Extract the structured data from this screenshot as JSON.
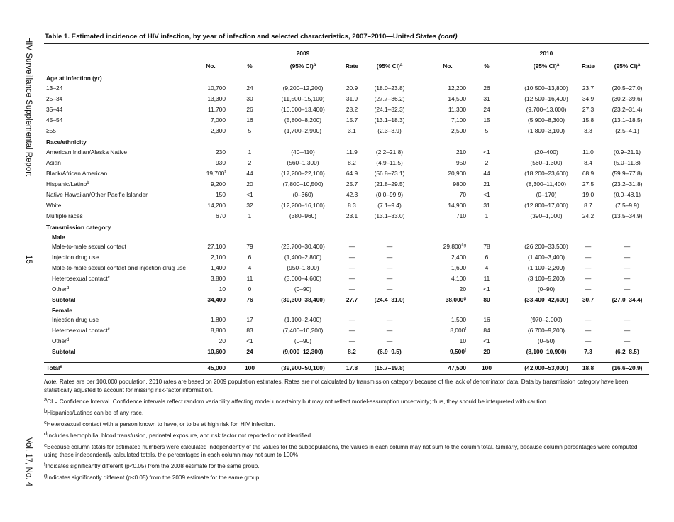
{
  "sidebar": {
    "report": "HIV Surveillance Supplemental Report",
    "page": "15",
    "volume": "Vol. 17, No. 4"
  },
  "title": {
    "text": "Table 1.  Estimated incidence of HIV infection, by year of infection and selected characteristics, 2007–2010—United States",
    "suffix": "(cont)"
  },
  "table": {
    "years": [
      "2009",
      "2010"
    ],
    "columns": [
      "No.",
      "%",
      {
        "text": "(95% CI)",
        "sup": "a"
      },
      "Rate",
      {
        "text": "(95% CI)",
        "sup": "a"
      }
    ],
    "groups": [
      {
        "title": "Age at infection (yr)",
        "rows": [
          {
            "label": "13–24",
            "cells": [
              "10,700",
              "24",
              "(9,200–12,200)",
              "20.9",
              "(18.0–23.8)",
              "12,200",
              "26",
              "(10,500–13,800)",
              "23.7",
              "(20.5–27.0)"
            ]
          },
          {
            "label": "25–34",
            "cells": [
              "13,300",
              "30",
              "(11,500–15,100)",
              "31.9",
              "(27.7–36.2)",
              "14,500",
              "31",
              "(12,500–16,400)",
              "34.9",
              "(30.2–39.6)"
            ]
          },
          {
            "label": "35–44",
            "cells": [
              "11,700",
              "26",
              "(10,000–13,400)",
              "28.2",
              "(24.1–32.3)",
              "11,300",
              "24",
              "(9,700–13,000)",
              "27.3",
              "(23.2–31.4)"
            ]
          },
          {
            "label": "45–54",
            "cells": [
              "7,000",
              "16",
              "(5,800–8,200)",
              "15.7",
              "(13.1–18.3)",
              "7,100",
              "15",
              "(5,900–8,300)",
              "15.8",
              "(13.1–18.5)"
            ]
          },
          {
            "label": "≥55",
            "cells": [
              "2,300",
              "5",
              "(1,700–2,900)",
              "3.1",
              "(2.3–3.9)",
              "2,500",
              "5",
              "(1,800–3,100)",
              "3.3",
              "(2.5–4.1)"
            ]
          }
        ]
      },
      {
        "title": "Race/ethnicity",
        "rows": [
          {
            "label": "American Indian/Alaska Native",
            "cells": [
              "230",
              "1",
              "(40–410)",
              "11.9",
              "(2.2–21.8)",
              "210",
              "<1",
              "(20–400)",
              "11.0",
              "(0.9–21.1)"
            ]
          },
          {
            "label": "Asian",
            "cells": [
              "930",
              "2",
              "(560–1,300)",
              "8.2",
              "(4.9–11.5)",
              "950",
              "2",
              "(560–1,300)",
              "8.4",
              "(5.0–11.8)"
            ]
          },
          {
            "label": "Black/African American",
            "cells": [
              {
                "text": "19,700",
                "sup": "f"
              },
              "44",
              "(17,200–22,100)",
              "64.9",
              "(56.8–73.1)",
              "20,900",
              "44",
              "(18,200–23,600)",
              "68.9",
              "(59.9–77.8)"
            ]
          },
          {
            "label": {
              "text": "Hispanic/Latino",
              "sup": "b"
            },
            "cells": [
              "9,200",
              "20",
              "(7,800–10,500)",
              "25.7",
              "(21.8–29.5)",
              "9800",
              "21",
              "(8,300–11,400)",
              "27.5",
              "(23.2–31.8)"
            ]
          },
          {
            "label": "Native Hawaiian/Other Pacific Islander",
            "cells": [
              "150",
              "<1",
              "(0–360)",
              "42.3",
              "(0.0–99.9)",
              "70",
              "<1",
              "(0–170)",
              "19.0",
              "(0.0–48.1)"
            ]
          },
          {
            "label": "White",
            "cells": [
              "14,200",
              "32",
              "(12,200–16,100)",
              "8.3",
              "(7.1–9.4)",
              "14,900",
              "31",
              "(12,800–17,000)",
              "8.7",
              "(7.5–9.9)"
            ]
          },
          {
            "label": "Multiple races",
            "cells": [
              "670",
              "1",
              "(380–960)",
              "23.1",
              "(13.1–33.0)",
              "710",
              "1",
              "(390–1,000)",
              "24.2",
              "(13.5–34.9)"
            ]
          }
        ]
      },
      {
        "title": "Transmission category",
        "subgroups": [
          {
            "title": "Male",
            "rows": [
              {
                "label": "Male-to-male sexual contact",
                "cells": [
                  "27,100",
                  "79",
                  "(23,700–30,400)",
                  "—",
                  "—",
                  {
                    "text": "29,800",
                    "sup": "f,g"
                  },
                  "78",
                  "(26,200–33,500)",
                  "—",
                  "—"
                ]
              },
              {
                "label": "Injection drug use",
                "cells": [
                  "2,100",
                  "6",
                  "(1,400–2,800)",
                  "—",
                  "—",
                  "2,400",
                  "6",
                  "(1,400–3,400)",
                  "—",
                  "—"
                ]
              },
              {
                "label": "Male-to-male sexual contact and injection drug use",
                "cells": [
                  "1,400",
                  "4",
                  "(950–1,800)",
                  "—",
                  "—",
                  "1,600",
                  "4",
                  "(1,100–2,200)",
                  "—",
                  "—"
                ]
              },
              {
                "label": {
                  "text": "Heterosexual contact",
                  "sup": "c"
                },
                "cells": [
                  "3,800",
                  "11",
                  "(3,000–4,600)",
                  "—",
                  "—",
                  "4,100",
                  "11",
                  "(3,100–5,200)",
                  "—",
                  "—"
                ]
              },
              {
                "label": {
                  "text": "Other",
                  "sup": "d"
                },
                "cells": [
                  "10",
                  "0",
                  "(0–90)",
                  "—",
                  "—",
                  "20",
                  "<1",
                  "(0–90)",
                  "—",
                  "—"
                ]
              }
            ],
            "subtotal": {
              "label": "Subtotal",
              "cells": [
                "34,400",
                "76",
                "(30,300–38,400)",
                "27.7",
                "(24.4–31.0)",
                {
                  "text": "38,000",
                  "sup": "g"
                },
                "80",
                "(33,400–42,600)",
                "30.7",
                "(27.0–34.4)"
              ]
            }
          },
          {
            "title": "Female",
            "rows": [
              {
                "label": "Injection drug use",
                "cells": [
                  "1,800",
                  "17",
                  "(1,100–2,400)",
                  "—",
                  "—",
                  "1,500",
                  "16",
                  "(970–2,000)",
                  "—",
                  "—"
                ]
              },
              {
                "label": {
                  "text": "Heterosexual contact",
                  "sup": "c"
                },
                "cells": [
                  "8,800",
                  "83",
                  "(7,400–10,200)",
                  "—",
                  "—",
                  {
                    "text": "8,000",
                    "sup": "f"
                  },
                  "84",
                  "(6,700–9,200)",
                  "—",
                  "—"
                ]
              },
              {
                "label": {
                  "text": "Other",
                  "sup": "d"
                },
                "cells": [
                  "20",
                  "<1",
                  "(0–90)",
                  "—",
                  "—",
                  "10",
                  "<1",
                  "(0–50)",
                  "—",
                  "—"
                ]
              }
            ],
            "subtotal": {
              "label": "Subtotal",
              "cells": [
                "10,600",
                "24",
                "(9,000–12,300)",
                "8.2",
                "(6.9–9.5)",
                {
                  "text": "9,500",
                  "sup": "f"
                },
                "20",
                "(8,100–10,900)",
                "7.3",
                "(6.2–8.5)"
              ]
            }
          }
        ]
      }
    ],
    "total": {
      "label": {
        "text": "Total",
        "sup": "e"
      },
      "cells": [
        "45,000",
        "100",
        "(39,900–50,100)",
        "17.8",
        "(15.7–19.8)",
        "47,500",
        "100",
        "(42,000–53,000)",
        "18.8",
        "(16.6–20.9)"
      ]
    }
  },
  "note": {
    "label": "Note.",
    "text": "Rates are per 100,000 population. 2010 rates are based on 2009 population estimates. Rates are not calculated by transmission category because of the lack of denominator data. Data by transmission category have been statistically adjusted to account for missing risk-factor information."
  },
  "footnotes": [
    {
      "mark": "a",
      "text": "CI = Confidence Interval. Confidence intervals reflect random variability affecting model uncertainty but may not reflect model-assumption uncertainty; thus, they should be interpreted with caution."
    },
    {
      "mark": "b",
      "text": "Hispanics/Latinos can be of any race."
    },
    {
      "mark": "c",
      "text": "Heterosexual contact with a person known to have, or to be at high risk for, HIV infection."
    },
    {
      "mark": "d",
      "text": "Includes hemophilia, blood transfusion, perinatal exposure, and risk factor not reported or not identified."
    },
    {
      "mark": "e",
      "text": "Because column totals for estimated numbers were calculated independently of the values for the subpopulations, the values in each column may not sum to the column total. Similarly, because column percentages were computed using these independently calculated totals, the percentages in each column may not sum to 100%."
    },
    {
      "mark": "f",
      "text": "Indicates significantly different (p<0.05) from the 2008 estimate for the same group."
    },
    {
      "mark": "g",
      "text": "Indicates significantly different (p<0.05) from the 2009 estimate for the same group."
    }
  ]
}
